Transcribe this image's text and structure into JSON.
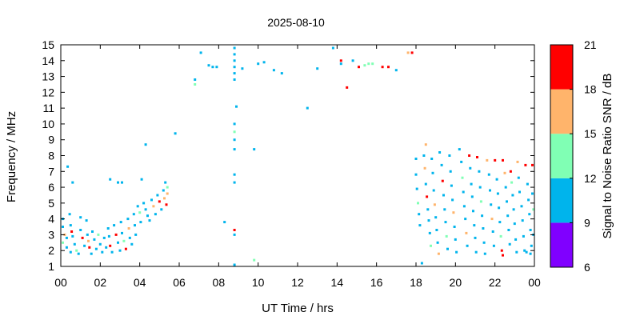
{
  "chart_data": {
    "type": "scatter",
    "title": "2025-08-10",
    "xlabel": "UT Time / hrs",
    "ylabel": "Frequency / MHz",
    "xlim": [
      0,
      24
    ],
    "ylim": [
      1,
      15
    ],
    "x_tick_labels": [
      "00",
      "02",
      "04",
      "06",
      "08",
      "10",
      "12",
      "14",
      "16",
      "18",
      "20",
      "22",
      "00"
    ],
    "y_ticks": [
      1,
      2,
      3,
      4,
      5,
      6,
      7,
      8,
      9,
      10,
      11,
      12,
      13,
      14,
      15
    ],
    "grid": false,
    "colorbar": {
      "label": "Signal to Noise Ratio SNR / dB",
      "range": [
        6,
        21
      ],
      "ticks": [
        6,
        9,
        12,
        15,
        18,
        21
      ],
      "bands": [
        {
          "from": 6,
          "to": 9,
          "color": "#8000ff"
        },
        {
          "from": 9,
          "to": 12,
          "color": "#00b4ec"
        },
        {
          "from": 12,
          "to": 15,
          "color": "#80ffb4"
        },
        {
          "from": 15,
          "to": 18,
          "color": "#ffb46b"
        },
        {
          "from": 18,
          "to": 21,
          "color": "#ff0000"
        }
      ]
    },
    "points": [
      [
        0.35,
        7.3,
        10
      ],
      [
        0.6,
        6.3,
        10
      ],
      [
        0.1,
        4.0,
        10
      ],
      [
        0.1,
        3.5,
        11
      ],
      [
        0.2,
        3.0,
        16
      ],
      [
        0.3,
        2.8,
        10
      ],
      [
        0.1,
        2.5,
        13
      ],
      [
        0.3,
        2.2,
        10
      ],
      [
        0.45,
        4.3,
        10
      ],
      [
        0.5,
        3.6,
        11
      ],
      [
        0.55,
        3.2,
        19
      ],
      [
        0.6,
        2.9,
        10
      ],
      [
        0.7,
        2.4,
        10
      ],
      [
        0.8,
        2.0,
        13
      ],
      [
        0.9,
        1.8,
        10
      ],
      [
        0.5,
        1.9,
        10
      ],
      [
        1.0,
        4.1,
        10
      ],
      [
        1.0,
        3.3,
        10
      ],
      [
        1.1,
        2.8,
        19
      ],
      [
        1.2,
        2.3,
        10
      ],
      [
        1.3,
        3.9,
        10
      ],
      [
        1.35,
        3.0,
        10
      ],
      [
        1.4,
        2.6,
        16
      ],
      [
        1.45,
        2.2,
        19
      ],
      [
        1.55,
        1.8,
        10
      ],
      [
        1.6,
        3.2,
        10
      ],
      [
        1.7,
        2.7,
        10
      ],
      [
        1.8,
        2.1,
        10
      ],
      [
        1.9,
        3.0,
        13
      ],
      [
        2.0,
        2.4,
        10
      ],
      [
        2.1,
        1.9,
        10
      ],
      [
        2.2,
        2.8,
        10
      ],
      [
        2.3,
        2.2,
        10
      ],
      [
        2.4,
        3.4,
        10
      ],
      [
        2.45,
        2.9,
        10
      ],
      [
        2.5,
        2.3,
        19
      ],
      [
        2.6,
        1.9,
        10
      ],
      [
        2.7,
        3.6,
        10
      ],
      [
        2.8,
        3.0,
        19
      ],
      [
        2.9,
        2.5,
        10
      ],
      [
        3.0,
        2.0,
        10
      ],
      [
        3.05,
        3.8,
        10
      ],
      [
        3.1,
        3.1,
        10
      ],
      [
        3.2,
        2.6,
        13
      ],
      [
        3.3,
        2.1,
        19
      ],
      [
        3.4,
        4.0,
        10
      ],
      [
        3.45,
        3.4,
        16
      ],
      [
        3.5,
        2.8,
        10
      ],
      [
        3.6,
        2.4,
        10
      ],
      [
        3.7,
        4.3,
        10
      ],
      [
        3.75,
        3.6,
        10
      ],
      [
        3.8,
        3.0,
        10
      ],
      [
        3.9,
        4.8,
        10
      ],
      [
        4.0,
        4.4,
        13
      ],
      [
        4.05,
        3.8,
        10
      ],
      [
        4.1,
        6.5,
        10
      ],
      [
        4.2,
        5.0,
        10
      ],
      [
        4.3,
        4.6,
        10
      ],
      [
        4.4,
        4.2,
        10
      ],
      [
        4.5,
        3.9,
        10
      ],
      [
        4.6,
        5.2,
        10
      ],
      [
        4.7,
        4.8,
        16
      ],
      [
        4.8,
        4.3,
        10
      ],
      [
        4.9,
        5.5,
        10
      ],
      [
        5.0,
        5.1,
        19
      ],
      [
        5.1,
        4.6,
        10
      ],
      [
        5.2,
        5.8,
        10
      ],
      [
        5.25,
        5.3,
        16
      ],
      [
        5.3,
        6.3,
        10
      ],
      [
        5.35,
        4.9,
        19
      ],
      [
        5.4,
        6.0,
        13
      ],
      [
        5.4,
        5.6,
        16
      ],
      [
        2.5,
        6.5,
        10
      ],
      [
        2.9,
        6.3,
        10
      ],
      [
        3.1,
        6.3,
        10
      ],
      [
        4.3,
        8.7,
        10
      ],
      [
        5.8,
        9.4,
        10
      ],
      [
        6.8,
        12.8,
        10
      ],
      [
        6.8,
        12.5,
        13
      ],
      [
        7.1,
        14.5,
        10
      ],
      [
        7.5,
        13.7,
        10
      ],
      [
        7.7,
        13.6,
        10
      ],
      [
        7.9,
        13.6,
        10
      ],
      [
        8.3,
        3.8,
        10
      ],
      [
        8.8,
        14.8,
        10
      ],
      [
        8.8,
        14.4,
        10
      ],
      [
        8.8,
        14.0,
        10
      ],
      [
        8.8,
        13.6,
        10
      ],
      [
        8.8,
        13.2,
        10
      ],
      [
        8.8,
        12.8,
        10
      ],
      [
        8.8,
        10.0,
        10
      ],
      [
        8.8,
        9.5,
        13
      ],
      [
        8.8,
        9.0,
        10
      ],
      [
        8.8,
        8.4,
        10
      ],
      [
        8.8,
        6.8,
        10
      ],
      [
        8.8,
        6.3,
        10
      ],
      [
        8.8,
        3.3,
        19
      ],
      [
        8.8,
        3.0,
        10
      ],
      [
        8.8,
        1.1,
        10
      ],
      [
        8.9,
        11.1,
        10
      ],
      [
        9.2,
        13.5,
        10
      ],
      [
        9.8,
        8.4,
        10
      ],
      [
        9.8,
        1.4,
        13
      ],
      [
        10.0,
        13.8,
        10
      ],
      [
        10.3,
        13.9,
        10
      ],
      [
        10.8,
        13.4,
        10
      ],
      [
        11.2,
        13.2,
        10
      ],
      [
        12.5,
        11.0,
        10
      ],
      [
        13.0,
        13.5,
        10
      ],
      [
        13.8,
        14.8,
        10
      ],
      [
        14.2,
        14.0,
        19
      ],
      [
        14.2,
        13.8,
        10
      ],
      [
        14.5,
        12.3,
        19
      ],
      [
        14.8,
        14.0,
        10
      ],
      [
        15.1,
        13.6,
        19
      ],
      [
        15.4,
        13.7,
        13
      ],
      [
        15.6,
        13.8,
        13
      ],
      [
        15.8,
        13.8,
        13
      ],
      [
        16.3,
        13.6,
        19
      ],
      [
        16.6,
        13.6,
        19
      ],
      [
        17.0,
        13.4,
        10
      ],
      [
        17.6,
        14.5,
        16
      ],
      [
        17.8,
        14.5,
        19
      ],
      [
        18.0,
        7.8,
        10
      ],
      [
        18.0,
        6.8,
        10
      ],
      [
        18.05,
        5.9,
        10
      ],
      [
        18.1,
        5.0,
        13
      ],
      [
        18.15,
        4.3,
        10
      ],
      [
        18.2,
        3.6,
        10
      ],
      [
        18.3,
        1.2,
        10
      ],
      [
        18.4,
        8.0,
        10
      ],
      [
        18.45,
        7.2,
        16
      ],
      [
        18.5,
        6.2,
        10
      ],
      [
        18.55,
        5.4,
        19
      ],
      [
        18.6,
        4.6,
        10
      ],
      [
        18.65,
        3.9,
        10
      ],
      [
        18.7,
        3.1,
        10
      ],
      [
        18.75,
        2.3,
        13
      ],
      [
        18.5,
        8.7,
        16
      ],
      [
        18.8,
        7.8,
        10
      ],
      [
        18.85,
        6.9,
        10
      ],
      [
        18.9,
        5.8,
        10
      ],
      [
        18.95,
        4.9,
        16
      ],
      [
        19.0,
        4.1,
        10
      ],
      [
        19.05,
        3.3,
        10
      ],
      [
        19.1,
        2.5,
        10
      ],
      [
        19.15,
        1.8,
        16
      ],
      [
        19.2,
        8.2,
        10
      ],
      [
        19.3,
        7.4,
        10
      ],
      [
        19.35,
        6.4,
        19
      ],
      [
        19.4,
        5.5,
        10
      ],
      [
        19.45,
        4.6,
        10
      ],
      [
        19.5,
        3.8,
        10
      ],
      [
        19.55,
        2.9,
        13
      ],
      [
        19.6,
        2.1,
        10
      ],
      [
        19.7,
        8.0,
        10
      ],
      [
        19.75,
        7.0,
        10
      ],
      [
        19.8,
        6.1,
        10
      ],
      [
        19.85,
        5.2,
        10
      ],
      [
        19.9,
        4.4,
        16
      ],
      [
        19.95,
        3.5,
        10
      ],
      [
        20.0,
        2.7,
        10
      ],
      [
        20.05,
        1.9,
        10
      ],
      [
        20.2,
        8.4,
        10
      ],
      [
        20.3,
        7.6,
        10
      ],
      [
        20.35,
        6.6,
        13
      ],
      [
        20.4,
        5.7,
        10
      ],
      [
        20.45,
        4.8,
        10
      ],
      [
        20.5,
        4.0,
        10
      ],
      [
        20.55,
        3.1,
        16
      ],
      [
        20.6,
        2.3,
        10
      ],
      [
        20.7,
        8.0,
        19
      ],
      [
        20.75,
        7.2,
        10
      ],
      [
        20.8,
        6.2,
        10
      ],
      [
        20.85,
        5.4,
        10
      ],
      [
        20.9,
        4.5,
        10
      ],
      [
        20.95,
        3.6,
        10
      ],
      [
        21.0,
        2.8,
        10
      ],
      [
        21.05,
        1.9,
        10
      ],
      [
        21.1,
        7.9,
        19
      ],
      [
        21.2,
        7.0,
        10
      ],
      [
        21.25,
        6.0,
        10
      ],
      [
        21.3,
        5.1,
        13
      ],
      [
        21.35,
        4.2,
        10
      ],
      [
        21.4,
        3.4,
        10
      ],
      [
        21.45,
        2.5,
        10
      ],
      [
        21.5,
        1.8,
        10
      ],
      [
        21.6,
        7.7,
        16
      ],
      [
        21.7,
        6.8,
        10
      ],
      [
        21.75,
        5.8,
        10
      ],
      [
        21.8,
        4.9,
        10
      ],
      [
        21.85,
        4.0,
        16
      ],
      [
        21.9,
        3.2,
        10
      ],
      [
        21.95,
        2.3,
        10
      ],
      [
        22.0,
        7.7,
        19
      ],
      [
        22.1,
        6.5,
        10
      ],
      [
        22.15,
        5.6,
        10
      ],
      [
        22.2,
        4.7,
        10
      ],
      [
        22.25,
        3.8,
        10
      ],
      [
        22.3,
        2.9,
        13
      ],
      [
        22.35,
        2.0,
        19
      ],
      [
        22.4,
        1.7,
        19
      ],
      [
        22.4,
        7.7,
        19
      ],
      [
        22.5,
        6.9,
        16
      ],
      [
        22.55,
        6.0,
        10
      ],
      [
        22.6,
        5.1,
        10
      ],
      [
        22.65,
        4.2,
        10
      ],
      [
        22.7,
        3.3,
        10
      ],
      [
        22.75,
        2.4,
        10
      ],
      [
        22.8,
        7.0,
        19
      ],
      [
        22.85,
        6.3,
        13
      ],
      [
        22.9,
        5.5,
        10
      ],
      [
        22.95,
        4.6,
        10
      ],
      [
        23.0,
        3.7,
        10
      ],
      [
        23.05,
        2.7,
        10
      ],
      [
        23.1,
        1.9,
        10
      ],
      [
        23.15,
        7.6,
        16
      ],
      [
        23.2,
        6.6,
        10
      ],
      [
        23.25,
        5.7,
        10
      ],
      [
        23.35,
        4.8,
        10
      ],
      [
        23.4,
        3.9,
        10
      ],
      [
        23.45,
        2.9,
        10
      ],
      [
        23.5,
        2.0,
        10
      ],
      [
        23.55,
        7.4,
        19
      ],
      [
        23.65,
        6.2,
        10
      ],
      [
        23.7,
        5.2,
        10
      ],
      [
        23.75,
        4.3,
        10
      ],
      [
        23.8,
        3.3,
        10
      ],
      [
        23.85,
        2.3,
        10
      ],
      [
        23.9,
        7.4,
        19
      ],
      [
        23.9,
        5.6,
        10
      ],
      [
        23.95,
        4.6,
        13
      ],
      [
        23.95,
        3.0,
        10
      ],
      [
        23.8,
        1.8,
        10
      ],
      [
        23.6,
        1.9,
        10
      ]
    ]
  }
}
